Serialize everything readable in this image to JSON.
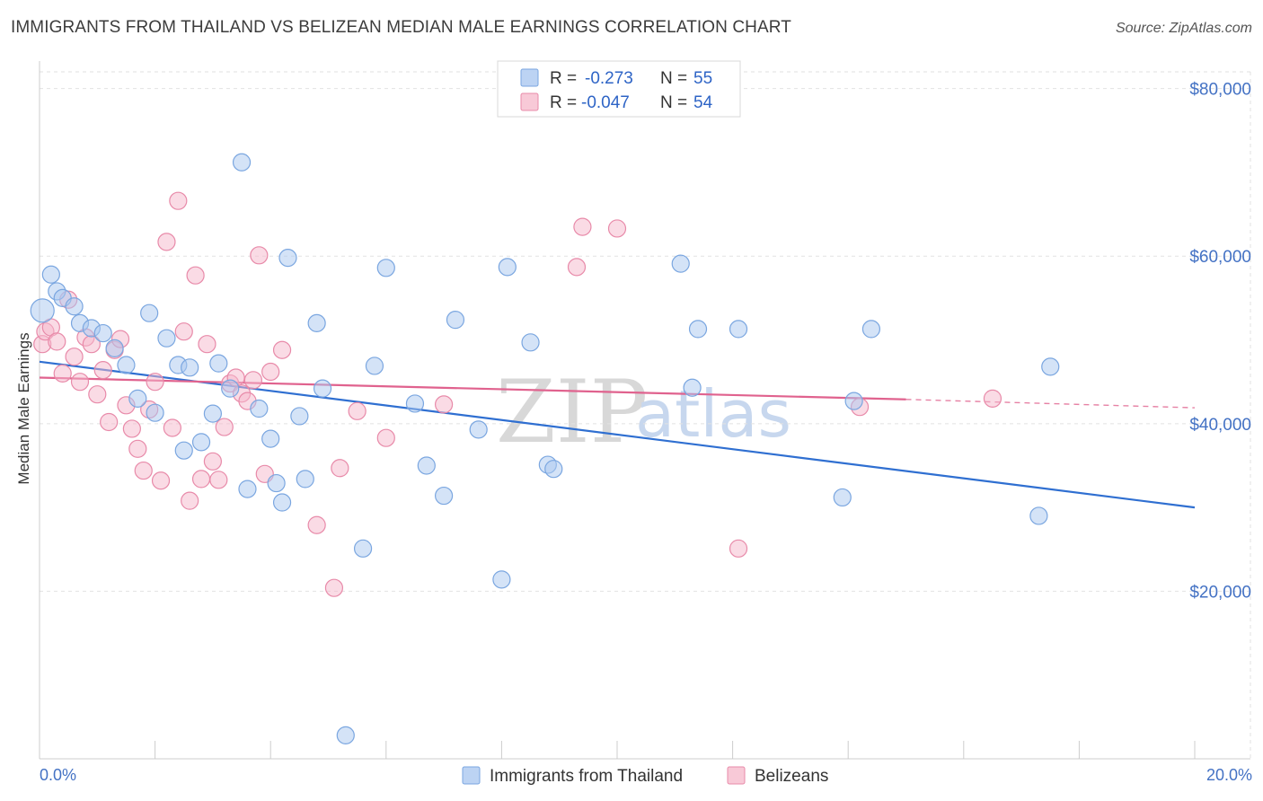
{
  "header": {
    "title": "IMMIGRANTS FROM THAILAND VS BELIZEAN MEDIAN MALE EARNINGS CORRELATION CHART",
    "source": "Source: ZipAtlas.com"
  },
  "watermark": {
    "zip": "ZIP",
    "atlas": "atlas"
  },
  "legend": {
    "rows": [
      {
        "r_label": "R =",
        "r_value": "-0.273",
        "n_label": "N =",
        "n_value": "55"
      },
      {
        "r_label": "R =",
        "r_value": "-0.047",
        "n_label": "N =",
        "n_value": "54"
      }
    ]
  },
  "bottom_legend": {
    "items": [
      {
        "label": "Immigrants from Thailand"
      },
      {
        "label": "Belizeans"
      }
    ]
  },
  "chart_data": {
    "type": "scatter",
    "title": "IMMIGRANTS FROM THAILAND VS BELIZEAN MEDIAN MALE EARNINGS CORRELATION CHART",
    "xlabel": "",
    "ylabel": "Median Male Earnings",
    "xlim": [
      0,
      20
    ],
    "ylim": [
      0,
      82000
    ],
    "x_tick_labels": [
      "0.0%",
      "20.0%"
    ],
    "y_ticks": [
      20000,
      40000,
      60000,
      80000
    ],
    "y_tick_labels": [
      "$20,000",
      "$40,000",
      "$60,000",
      "$80,000"
    ],
    "grid": true,
    "legend_position": "top-center",
    "series": [
      {
        "name": "Immigrants from Thailand",
        "color": "#a9c7ef",
        "stroke": "#7aa6e0",
        "line_color": "#2f6fd1",
        "trend": {
          "x": [
            0,
            20
          ],
          "y": [
            47400,
            30000
          ]
        },
        "points": [
          [
            0.05,
            53500
          ],
          [
            0.2,
            57800
          ],
          [
            0.3,
            55800
          ],
          [
            0.4,
            55000
          ],
          [
            0.6,
            54000
          ],
          [
            0.7,
            52000
          ],
          [
            0.9,
            51400
          ],
          [
            1.1,
            50800
          ],
          [
            1.3,
            49000
          ],
          [
            1.5,
            47000
          ],
          [
            1.7,
            43000
          ],
          [
            1.9,
            53200
          ],
          [
            2.0,
            41300
          ],
          [
            2.2,
            50200
          ],
          [
            2.4,
            47000
          ],
          [
            2.5,
            36800
          ],
          [
            2.6,
            46700
          ],
          [
            2.8,
            37800
          ],
          [
            3.0,
            41200
          ],
          [
            3.1,
            47200
          ],
          [
            3.3,
            44200
          ],
          [
            3.5,
            71200
          ],
          [
            3.6,
            32200
          ],
          [
            3.8,
            41800
          ],
          [
            4.0,
            38200
          ],
          [
            4.1,
            32900
          ],
          [
            4.2,
            30600
          ],
          [
            4.3,
            59800
          ],
          [
            4.5,
            40900
          ],
          [
            4.6,
            33400
          ],
          [
            4.8,
            52000
          ],
          [
            4.9,
            44200
          ],
          [
            5.3,
            2800
          ],
          [
            5.6,
            25100
          ],
          [
            5.8,
            46900
          ],
          [
            6.0,
            58600
          ],
          [
            6.5,
            42400
          ],
          [
            6.7,
            35000
          ],
          [
            7.0,
            31400
          ],
          [
            7.2,
            52400
          ],
          [
            7.6,
            39300
          ],
          [
            8.0,
            21400
          ],
          [
            8.1,
            58700
          ],
          [
            8.5,
            49700
          ],
          [
            8.8,
            35100
          ],
          [
            8.9,
            34600
          ],
          [
            11.1,
            59100
          ],
          [
            11.3,
            44300
          ],
          [
            11.4,
            51300
          ],
          [
            12.1,
            51300
          ],
          [
            13.9,
            31200
          ],
          [
            14.1,
            42700
          ],
          [
            14.4,
            51300
          ],
          [
            17.3,
            29000
          ],
          [
            17.5,
            46800
          ]
        ]
      },
      {
        "name": "Belizeans",
        "color": "#f5b8cb",
        "stroke": "#e88aa9",
        "line_color": "#e0628e",
        "trend": {
          "x": [
            0,
            15
          ],
          "y": [
            45500,
            42900
          ]
        },
        "trend_dashed": {
          "x": [
            15,
            20
          ],
          "y": [
            42900,
            41900
          ]
        },
        "points": [
          [
            0.05,
            49500
          ],
          [
            0.1,
            51000
          ],
          [
            0.2,
            51500
          ],
          [
            0.3,
            49800
          ],
          [
            0.4,
            46000
          ],
          [
            0.5,
            54800
          ],
          [
            0.6,
            48000
          ],
          [
            0.7,
            45000
          ],
          [
            0.8,
            50300
          ],
          [
            0.9,
            49500
          ],
          [
            1.0,
            43500
          ],
          [
            1.1,
            46400
          ],
          [
            1.2,
            40200
          ],
          [
            1.3,
            48800
          ],
          [
            1.4,
            50100
          ],
          [
            1.5,
            42200
          ],
          [
            1.6,
            39400
          ],
          [
            1.7,
            37000
          ],
          [
            1.8,
            34400
          ],
          [
            1.9,
            41700
          ],
          [
            2.0,
            45000
          ],
          [
            2.1,
            33200
          ],
          [
            2.2,
            61700
          ],
          [
            2.3,
            39500
          ],
          [
            2.4,
            66600
          ],
          [
            2.5,
            51000
          ],
          [
            2.6,
            30800
          ],
          [
            2.7,
            57700
          ],
          [
            2.8,
            33400
          ],
          [
            2.9,
            49500
          ],
          [
            3.0,
            35500
          ],
          [
            3.1,
            33300
          ],
          [
            3.2,
            39600
          ],
          [
            3.3,
            44800
          ],
          [
            3.4,
            45500
          ],
          [
            3.5,
            43600
          ],
          [
            3.6,
            42700
          ],
          [
            3.7,
            45200
          ],
          [
            3.8,
            60100
          ],
          [
            3.9,
            34000
          ],
          [
            4.0,
            46200
          ],
          [
            4.2,
            48800
          ],
          [
            4.8,
            27900
          ],
          [
            5.1,
            20400
          ],
          [
            5.2,
            34700
          ],
          [
            5.5,
            41500
          ],
          [
            6.0,
            38300
          ],
          [
            7.0,
            42300
          ],
          [
            9.3,
            58700
          ],
          [
            9.4,
            63500
          ],
          [
            10.0,
            63300
          ],
          [
            12.1,
            25100
          ],
          [
            14.2,
            42000
          ],
          [
            16.5,
            43000
          ]
        ]
      }
    ]
  }
}
